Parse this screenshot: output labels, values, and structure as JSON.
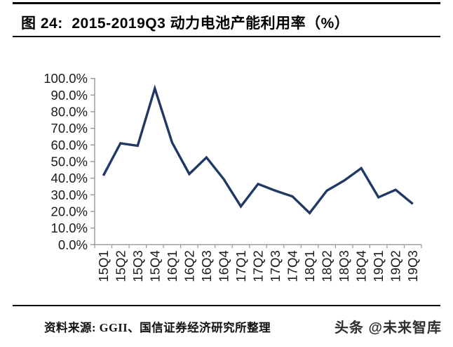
{
  "header": {
    "title": "图 24:  2015-2019Q3 动力电池产能利用率（%）"
  },
  "chart_data": {
    "type": "line",
    "title": "2015-2019Q3 动力电池产能利用率（%）",
    "xlabel": "",
    "ylabel": "",
    "categories": [
      "15Q1",
      "15Q2",
      "15Q3",
      "15Q4",
      "16Q1",
      "16Q2",
      "16Q3",
      "16Q4",
      "17Q1",
      "17Q2",
      "17Q3",
      "17Q4",
      "18Q1",
      "18Q2",
      "18Q3",
      "18Q4",
      "19Q1",
      "19Q2",
      "19Q3"
    ],
    "series": [
      {
        "name": "动力电池产能利用率",
        "values": [
          41.5,
          61.0,
          59.5,
          94.0,
          61.5,
          42.5,
          52.5,
          39.5,
          23.0,
          36.5,
          32.5,
          29.0,
          19.0,
          32.5,
          38.5,
          46.0,
          28.5,
          33.0,
          24.5
        ]
      }
    ],
    "ylim": [
      0,
      100
    ],
    "ytick_values": [
      0,
      10,
      20,
      30,
      40,
      50,
      60,
      70,
      80,
      90,
      100
    ],
    "ytick_labels": [
      "0.0%",
      "10.0%",
      "20.0%",
      "30.0%",
      "40.0%",
      "50.0%",
      "60.0%",
      "70.0%",
      "80.0%",
      "90.0%",
      "100.0%"
    ],
    "xtick_rotation": -90,
    "grid": false,
    "legend": "none",
    "colors": {
      "line": "#1f3864",
      "axis": "#969696",
      "tick_label": "#1a1a1a"
    }
  },
  "footer": {
    "source": "资料来源: GGII、国信证券经济研究所整理",
    "watermark": "头条 @未来智库"
  }
}
